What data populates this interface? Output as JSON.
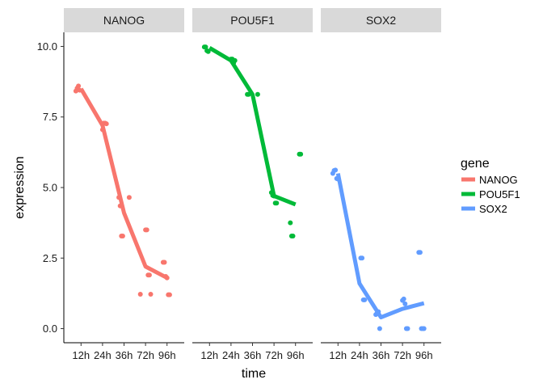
{
  "chart_data": {
    "type": "line",
    "xlabel": "time",
    "ylabel": "expression",
    "ylim": [
      -0.5,
      10.5
    ],
    "yticks": [
      0.0,
      2.5,
      5.0,
      7.5,
      10.0
    ],
    "ytick_labels": [
      "0.0",
      "2.5",
      "5.0",
      "7.5",
      "10.0"
    ],
    "categories": [
      "12h",
      "24h",
      "36h",
      "72h",
      "96h"
    ],
    "grid": false,
    "legend": {
      "title": "gene",
      "position": "right"
    },
    "facets": [
      "NANOG",
      "POU5F1",
      "SOX2"
    ],
    "series": [
      {
        "name": "NANOG",
        "color": "#F8766D",
        "line": [
          8.5,
          7.2,
          4.1,
          2.2,
          1.8
        ],
        "points": [
          [
            "12h",
            8.42
          ],
          [
            "12h",
            8.52
          ],
          [
            "12h",
            8.6
          ],
          [
            "12h",
            8.45
          ],
          [
            "24h",
            7.05
          ],
          [
            "24h",
            7.28
          ],
          [
            "24h",
            7.28
          ],
          [
            "24h",
            7.26
          ],
          [
            "36h",
            4.65
          ],
          [
            "36h",
            4.65
          ],
          [
            "36h",
            4.35
          ],
          [
            "36h",
            3.28
          ],
          [
            "36h",
            3.28
          ],
          [
            "72h",
            3.5
          ],
          [
            "72h",
            3.5
          ],
          [
            "72h",
            1.9
          ],
          [
            "72h",
            1.9
          ],
          [
            "72h",
            1.22
          ],
          [
            "72h",
            1.22
          ],
          [
            "96h",
            2.35
          ],
          [
            "96h",
            2.35
          ],
          [
            "96h",
            1.85
          ],
          [
            "96h",
            1.8
          ],
          [
            "96h",
            1.2
          ],
          [
            "96h",
            1.2
          ]
        ]
      },
      {
        "name": "POU5F1",
        "color": "#00BA38",
        "line": [
          9.95,
          9.5,
          8.3,
          4.7,
          4.4
        ],
        "points": [
          [
            "12h",
            9.98
          ],
          [
            "12h",
            9.98
          ],
          [
            "12h",
            9.85
          ],
          [
            "12h",
            9.82
          ],
          [
            "24h",
            9.55
          ],
          [
            "24h",
            9.55
          ],
          [
            "24h",
            9.42
          ],
          [
            "24h",
            9.5
          ],
          [
            "36h",
            8.3
          ],
          [
            "36h",
            8.3
          ],
          [
            "36h",
            8.3
          ],
          [
            "72h",
            4.82
          ],
          [
            "72h",
            4.72
          ],
          [
            "72h",
            4.7
          ],
          [
            "72h",
            4.45
          ],
          [
            "72h",
            4.45
          ],
          [
            "96h",
            6.18
          ],
          [
            "96h",
            6.18
          ],
          [
            "96h",
            3.75
          ],
          [
            "96h",
            3.28
          ],
          [
            "96h",
            3.28
          ]
        ]
      },
      {
        "name": "SOX2",
        "color": "#619CFF",
        "line": [
          5.5,
          1.6,
          0.4,
          0.7,
          0.9
        ],
        "points": [
          [
            "12h",
            5.5
          ],
          [
            "12h",
            5.6
          ],
          [
            "12h",
            5.62
          ],
          [
            "12h",
            5.32
          ],
          [
            "12h",
            5.3
          ],
          [
            "24h",
            2.5
          ],
          [
            "24h",
            2.5
          ],
          [
            "24h",
            1.02
          ],
          [
            "24h",
            1.02
          ],
          [
            "36h",
            0.5
          ],
          [
            "36h",
            0.55
          ],
          [
            "36h",
            0.6
          ],
          [
            "36h",
            0.0
          ],
          [
            "72h",
            1.0
          ],
          [
            "72h",
            1.05
          ],
          [
            "72h",
            0.88
          ],
          [
            "72h",
            0.0
          ],
          [
            "72h",
            0.0
          ],
          [
            "96h",
            2.7
          ],
          [
            "96h",
            2.7
          ],
          [
            "96h",
            0.0
          ],
          [
            "96h",
            0.0
          ],
          [
            "96h",
            0.0
          ]
        ]
      }
    ]
  }
}
